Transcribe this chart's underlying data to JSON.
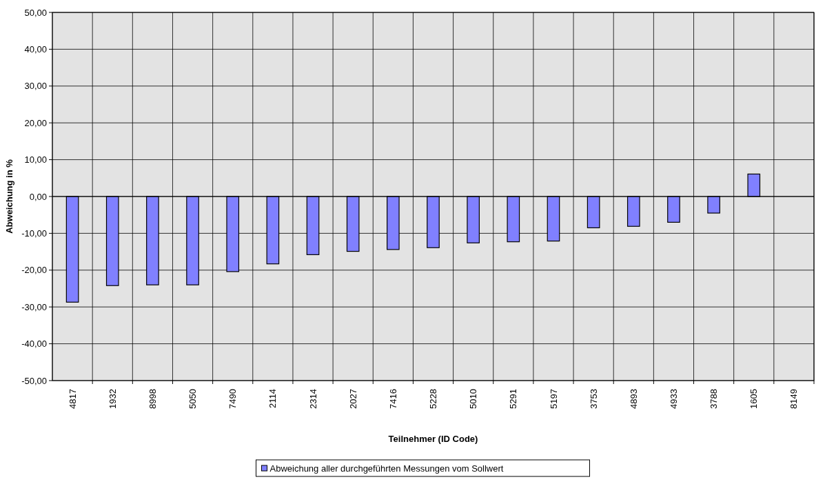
{
  "chart_data": {
    "type": "bar",
    "xlabel": "Teilnehmer (ID Code)",
    "ylabel": "Abweichung in %",
    "categories": [
      "4817",
      "1932",
      "8998",
      "5050",
      "7490",
      "2114",
      "2314",
      "2027",
      "7416",
      "5228",
      "5010",
      "5291",
      "5197",
      "3753",
      "4893",
      "4933",
      "3788",
      "1605",
      "8149"
    ],
    "series": [
      {
        "name": "Abweichung aller durchgeführten Messungen vom Sollwert",
        "color": "#8080ff",
        "values": [
          -28.7,
          -24.2,
          -24.0,
          -24.0,
          -20.4,
          -18.3,
          -15.8,
          -14.9,
          -14.4,
          -13.9,
          -12.6,
          -12.3,
          -12.1,
          -8.5,
          -8.1,
          -7.0,
          -4.5,
          6.1,
          null
        ]
      }
    ],
    "ylim": [
      -50,
      50
    ],
    "yticks": [
      {
        "value": -50,
        "label": "-50,00"
      },
      {
        "value": -40,
        "label": "-40,00"
      },
      {
        "value": -30,
        "label": "-30,00"
      },
      {
        "value": -20,
        "label": "-20,00"
      },
      {
        "value": -10,
        "label": "-10,00"
      },
      {
        "value": 0,
        "label": "0,00"
      },
      {
        "value": 10,
        "label": "10,00"
      },
      {
        "value": 20,
        "label": "20,00"
      },
      {
        "value": 30,
        "label": "30,00"
      },
      {
        "value": 40,
        "label": "40,00"
      },
      {
        "value": 50,
        "label": "50,00"
      }
    ],
    "grid": true,
    "legend": "bottom"
  }
}
